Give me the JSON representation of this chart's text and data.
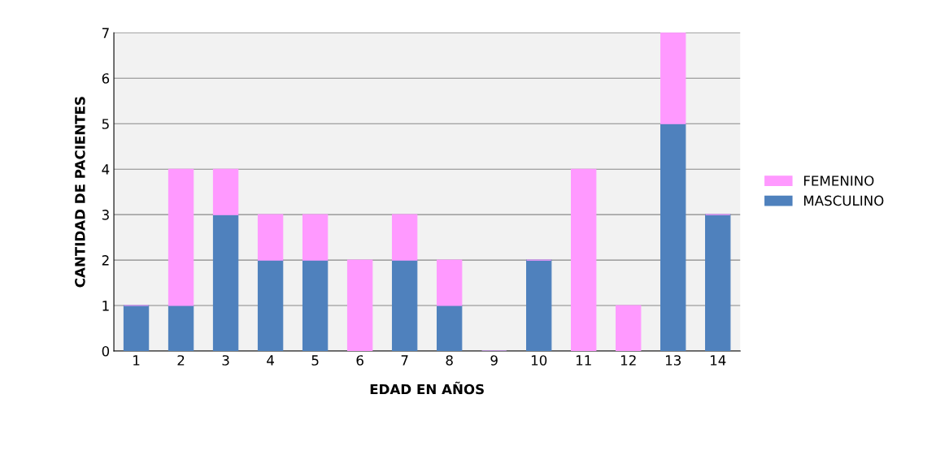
{
  "chart_data": {
    "type": "bar",
    "stacked": true,
    "xlabel": "EDAD EN AÑOS",
    "ylabel": "CANTIDAD DE PACIENTES",
    "categories": [
      "1",
      "2",
      "3",
      "4",
      "5",
      "6",
      "7",
      "8",
      "9",
      "10",
      "11",
      "12",
      "13",
      "14"
    ],
    "series": [
      {
        "name": "MASCULINO",
        "color": "#4f81bd",
        "values": [
          1,
          1,
          3,
          2,
          2,
          0,
          2,
          1,
          0,
          2,
          0,
          0,
          5,
          3
        ]
      },
      {
        "name": "FEMENINO",
        "color": "#ff99ff",
        "values": [
          0,
          3,
          1,
          1,
          1,
          2,
          1,
          1,
          0,
          0,
          4,
          1,
          2,
          0
        ]
      }
    ],
    "ylim": [
      0,
      7
    ],
    "yticks": [
      0,
      1,
      2,
      3,
      4,
      5,
      6,
      7
    ],
    "grid": "y",
    "legend": "right"
  }
}
